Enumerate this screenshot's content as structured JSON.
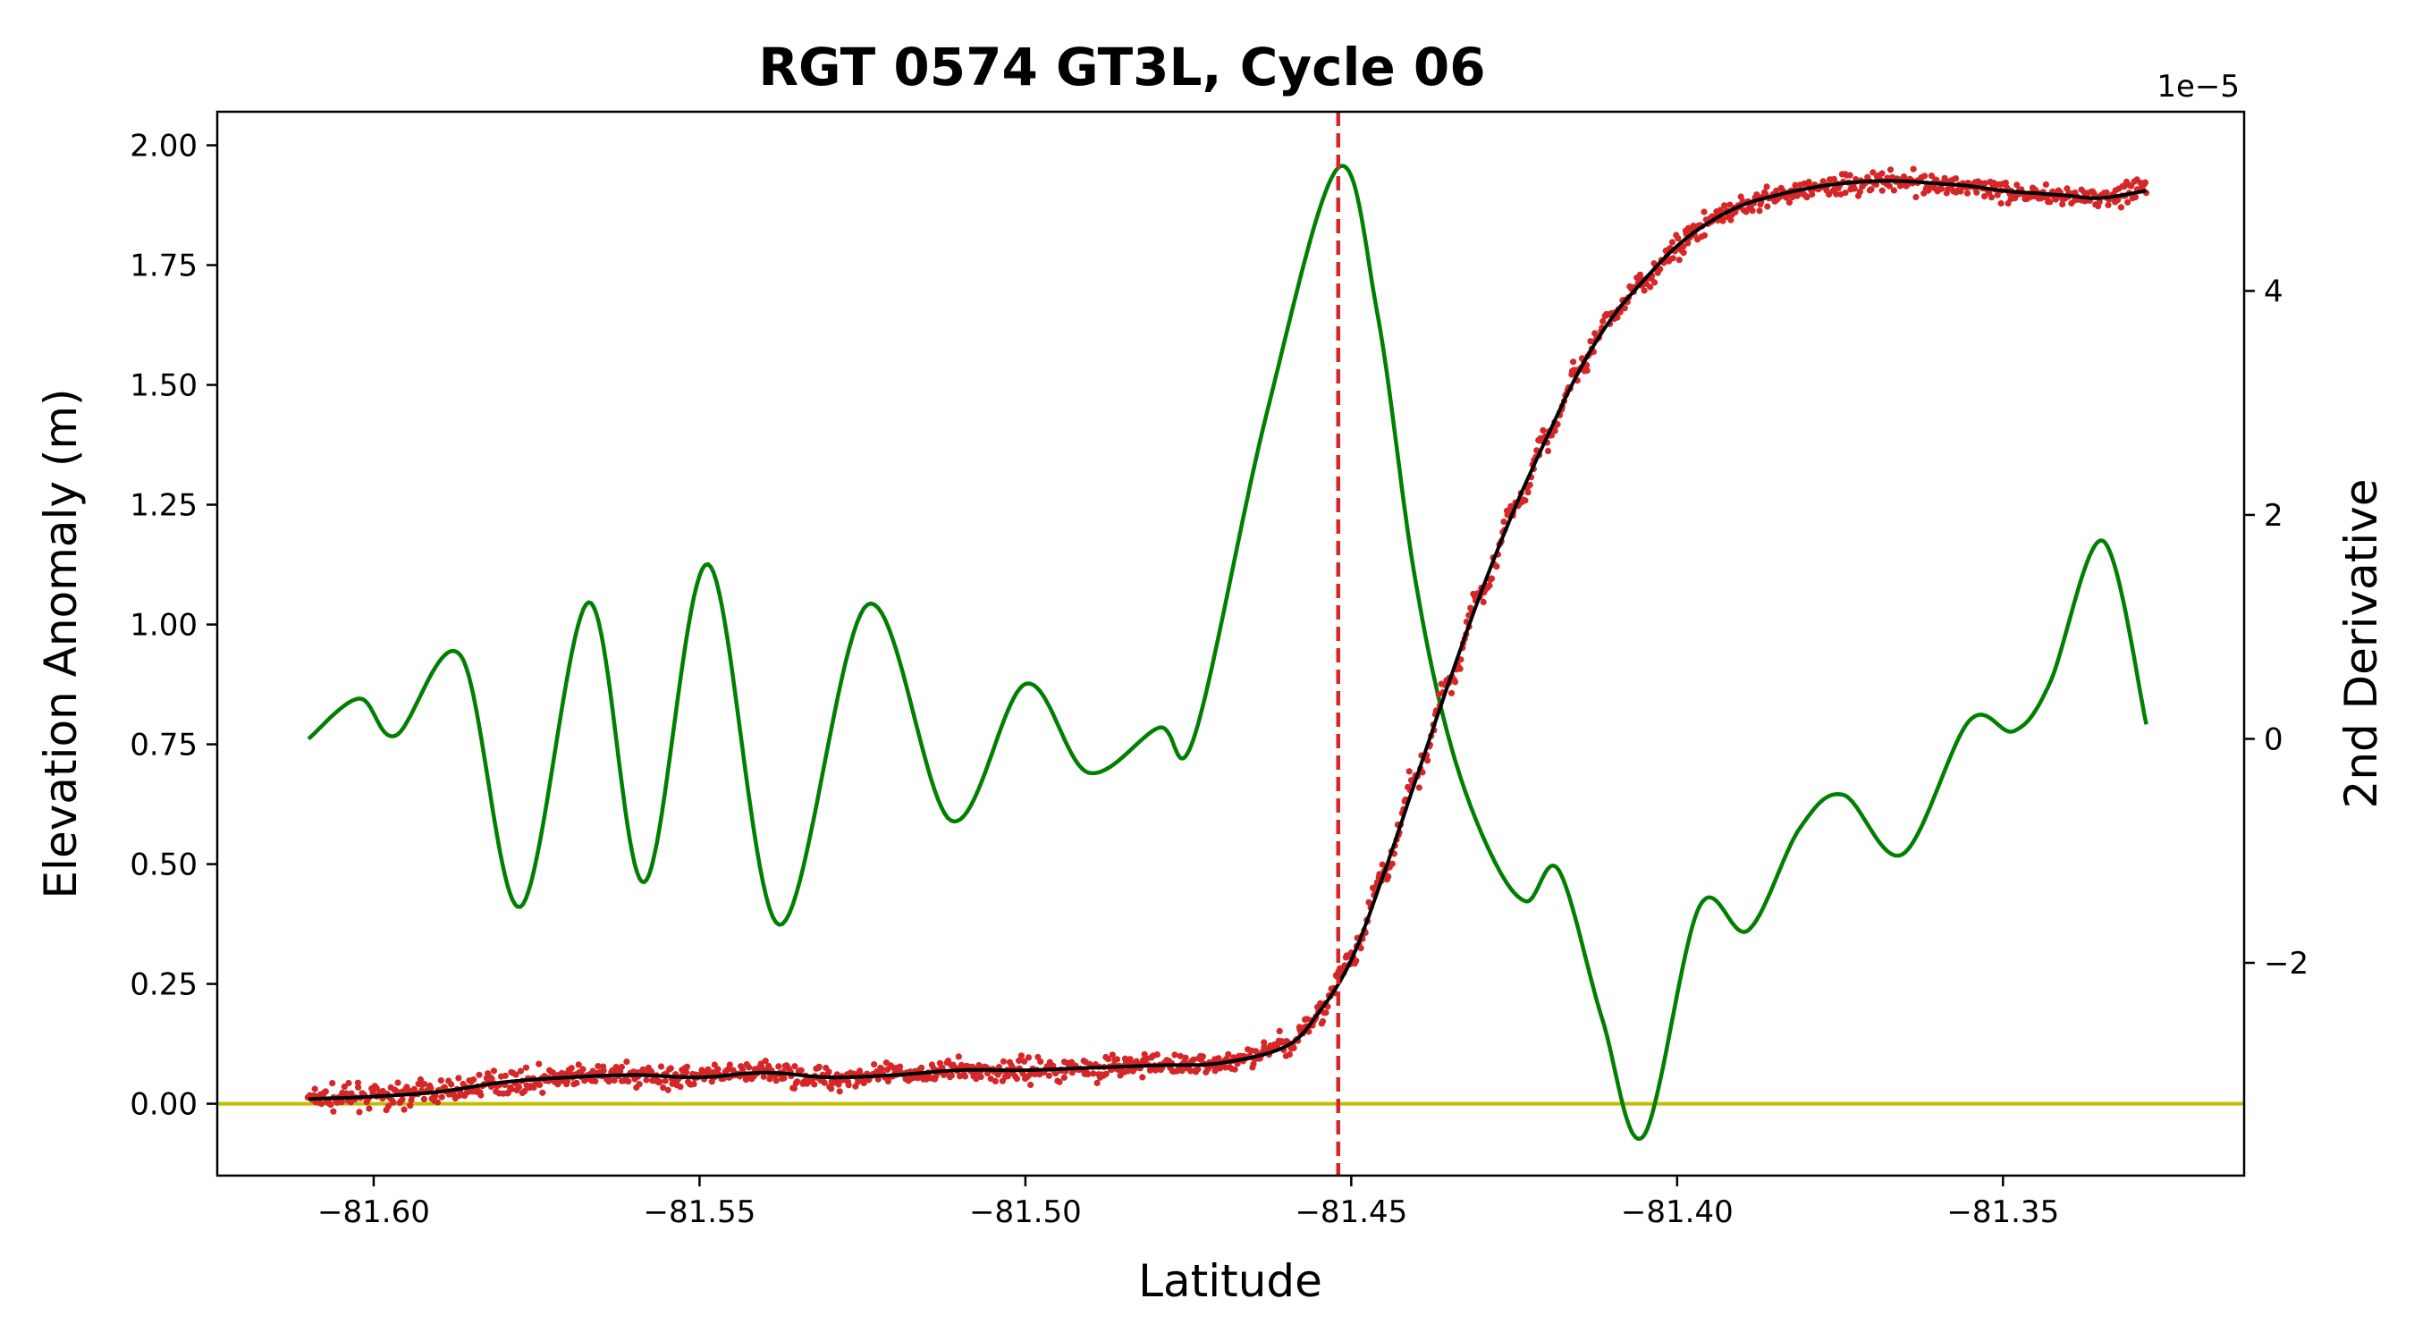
{
  "chart_data": {
    "type": "line",
    "title": "RGT 0574 GT3L, Cycle 06",
    "xlabel": "Latitude",
    "ylabel": "Elevation Anomaly (m)",
    "y2label": "2nd Derivative",
    "y2_offset_text": "1e−5",
    "xlim": [
      -81.624,
      -81.313
    ],
    "ylim": [
      -0.15,
      2.07
    ],
    "y2lim": [
      -3.9,
      5.6
    ],
    "grid": false,
    "legend": "none",
    "x_ticks": [
      {
        "value": -81.6,
        "label": "−81.60"
      },
      {
        "value": -81.55,
        "label": "−81.55"
      },
      {
        "value": -81.5,
        "label": "−81.50"
      },
      {
        "value": -81.45,
        "label": "−81.45"
      },
      {
        "value": -81.4,
        "label": "−81.40"
      },
      {
        "value": -81.35,
        "label": "−81.35"
      }
    ],
    "y_ticks": [
      {
        "value": 0.0,
        "label": "0.00"
      },
      {
        "value": 0.25,
        "label": "0.25"
      },
      {
        "value": 0.5,
        "label": "0.50"
      },
      {
        "value": 0.75,
        "label": "0.75"
      },
      {
        "value": 1.0,
        "label": "1.00"
      },
      {
        "value": 1.25,
        "label": "1.25"
      },
      {
        "value": 1.5,
        "label": "1.50"
      },
      {
        "value": 1.75,
        "label": "1.75"
      },
      {
        "value": 2.0,
        "label": "2.00"
      }
    ],
    "y2_ticks": [
      {
        "value": -2,
        "label": "−2"
      },
      {
        "value": 0,
        "label": "0"
      },
      {
        "value": 2,
        "label": "2"
      },
      {
        "value": 4,
        "label": "4"
      }
    ],
    "colors": {
      "points": "#d62728",
      "smoothed": "#000000",
      "second_derivative": "#007f00",
      "zero_line": "#bfbf00",
      "marker_line": "#d62728"
    },
    "zero_line_y": 0.0,
    "marker_x": -81.452,
    "series": [
      {
        "kind": "scatter",
        "axis": "left",
        "color": "#d62728",
        "x": [
          -81.61,
          -81.6,
          -81.59,
          -81.58,
          -81.57,
          -81.56,
          -81.55,
          -81.54,
          -81.53,
          -81.52,
          -81.51,
          -81.5,
          -81.49,
          -81.48,
          -81.47,
          -81.46,
          -81.455,
          -81.45,
          -81.445,
          -81.44,
          -81.435,
          -81.43,
          -81.425,
          -81.42,
          -81.415,
          -81.41,
          -81.405,
          -81.4,
          -81.395,
          -81.39,
          -81.385,
          -81.38,
          -81.375,
          -81.37,
          -81.365,
          -81.36,
          -81.355,
          -81.35,
          -81.345,
          -81.34,
          -81.335,
          -81.328
        ],
        "y": [
          0.01,
          0.015,
          0.025,
          0.045,
          0.055,
          0.06,
          0.055,
          0.065,
          0.055,
          0.06,
          0.07,
          0.07,
          0.075,
          0.08,
          0.085,
          0.12,
          0.19,
          0.3,
          0.48,
          0.68,
          0.88,
          1.07,
          1.24,
          1.39,
          1.53,
          1.64,
          1.72,
          1.79,
          1.84,
          1.875,
          1.895,
          1.91,
          1.92,
          1.925,
          1.925,
          1.92,
          1.915,
          1.905,
          1.9,
          1.895,
          1.89,
          1.905
        ]
      },
      {
        "kind": "line",
        "axis": "left",
        "color": "#000000",
        "x": [
          -81.61,
          -81.6,
          -81.59,
          -81.58,
          -81.57,
          -81.56,
          -81.55,
          -81.54,
          -81.53,
          -81.52,
          -81.51,
          -81.5,
          -81.49,
          -81.48,
          -81.47,
          -81.46,
          -81.455,
          -81.45,
          -81.445,
          -81.44,
          -81.435,
          -81.43,
          -81.425,
          -81.42,
          -81.415,
          -81.41,
          -81.405,
          -81.4,
          -81.395,
          -81.39,
          -81.385,
          -81.38,
          -81.375,
          -81.37,
          -81.365,
          -81.36,
          -81.355,
          -81.35,
          -81.345,
          -81.34,
          -81.335,
          -81.328
        ],
        "y": [
          0.01,
          0.015,
          0.025,
          0.045,
          0.055,
          0.06,
          0.055,
          0.065,
          0.055,
          0.06,
          0.07,
          0.07,
          0.075,
          0.08,
          0.085,
          0.12,
          0.19,
          0.3,
          0.48,
          0.68,
          0.88,
          1.07,
          1.24,
          1.39,
          1.53,
          1.64,
          1.72,
          1.79,
          1.84,
          1.875,
          1.895,
          1.91,
          1.92,
          1.925,
          1.925,
          1.92,
          1.915,
          1.905,
          1.9,
          1.895,
          1.89,
          1.905
        ]
      },
      {
        "kind": "line",
        "axis": "right",
        "color": "#007f00",
        "x": [
          -81.61,
          -81.6022,
          -81.5966,
          -81.5866,
          -81.5775,
          -81.567,
          -81.5585,
          -81.5487,
          -81.5378,
          -81.5242,
          -81.5114,
          -81.5,
          -81.4904,
          -81.4795,
          -81.4742,
          -81.463,
          -81.452,
          -81.446,
          -81.4404,
          -81.435,
          -81.4288,
          -81.4232,
          -81.4182,
          -81.4115,
          -81.4052,
          -81.3966,
          -81.3891,
          -81.3812,
          -81.3745,
          -81.3654,
          -81.3552,
          -81.3483,
          -81.3428,
          -81.3347,
          -81.328
        ],
        "y": [
          0.0,
          0.36,
          0.03,
          0.74,
          -1.5,
          1.22,
          -1.28,
          1.56,
          -1.66,
          1.2,
          -0.73,
          0.49,
          -0.3,
          0.1,
          0.0,
          2.9,
          5.1,
          3.8,
          1.5,
          0.0,
          -1.0,
          -1.45,
          -1.17,
          -2.5,
          -3.55,
          -1.5,
          -1.71,
          -0.8,
          -0.5,
          -1.03,
          0.16,
          0.07,
          0.5,
          1.77,
          0.13
        ]
      }
    ]
  }
}
